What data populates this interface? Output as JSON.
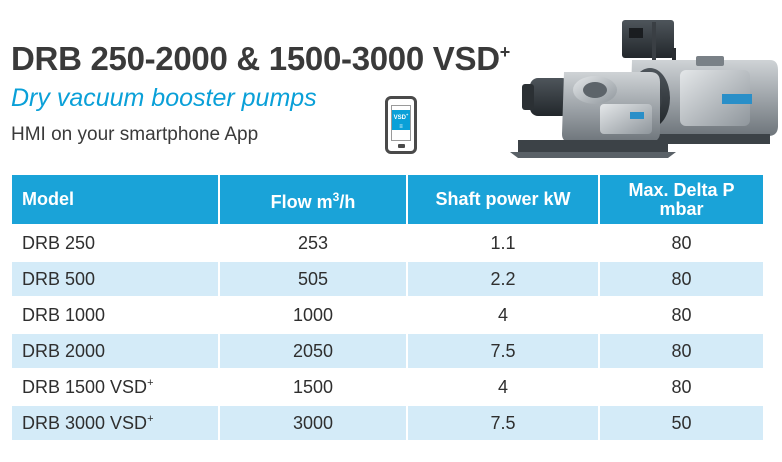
{
  "heading": {
    "title_main": "DRB 250-2000 & 1500-3000 VSD",
    "title_sup": "+",
    "subtitle": "Dry vacuum booster pumps",
    "hmi_text": "HMI on your smartphone App",
    "phone_badge": "VSD",
    "phone_badge_sup": "+"
  },
  "icons": {
    "smartphone": "smartphone-icon",
    "product_photo": "pumps-image"
  },
  "colors": {
    "accent": "#1aa3d8",
    "row_alt": "#d4ebf8",
    "title_text": "#3a3a3a"
  },
  "table": {
    "headers": {
      "model": "Model",
      "flow_main": "Flow m",
      "flow_sup": "3",
      "flow_unit": "/h",
      "power": "Shaft power kW",
      "delta_line1": "Max. Delta P",
      "delta_line2": "mbar"
    },
    "rows": [
      {
        "model": "DRB 250",
        "sup": "",
        "flow": "253",
        "power": "1.1",
        "delta": "80"
      },
      {
        "model": "DRB 500",
        "sup": "",
        "flow": "505",
        "power": "2.2",
        "delta": "80"
      },
      {
        "model": "DRB 1000",
        "sup": "",
        "flow": "1000",
        "power": "4",
        "delta": "80"
      },
      {
        "model": "DRB 2000",
        "sup": "",
        "flow": "2050",
        "power": "7.5",
        "delta": "80"
      },
      {
        "model": "DRB 1500 VSD",
        "sup": "+",
        "flow": "1500",
        "power": "4",
        "delta": "80"
      },
      {
        "model": "DRB 3000 VSD",
        "sup": "+",
        "flow": "3000",
        "power": "7.5",
        "delta": "50"
      }
    ]
  }
}
